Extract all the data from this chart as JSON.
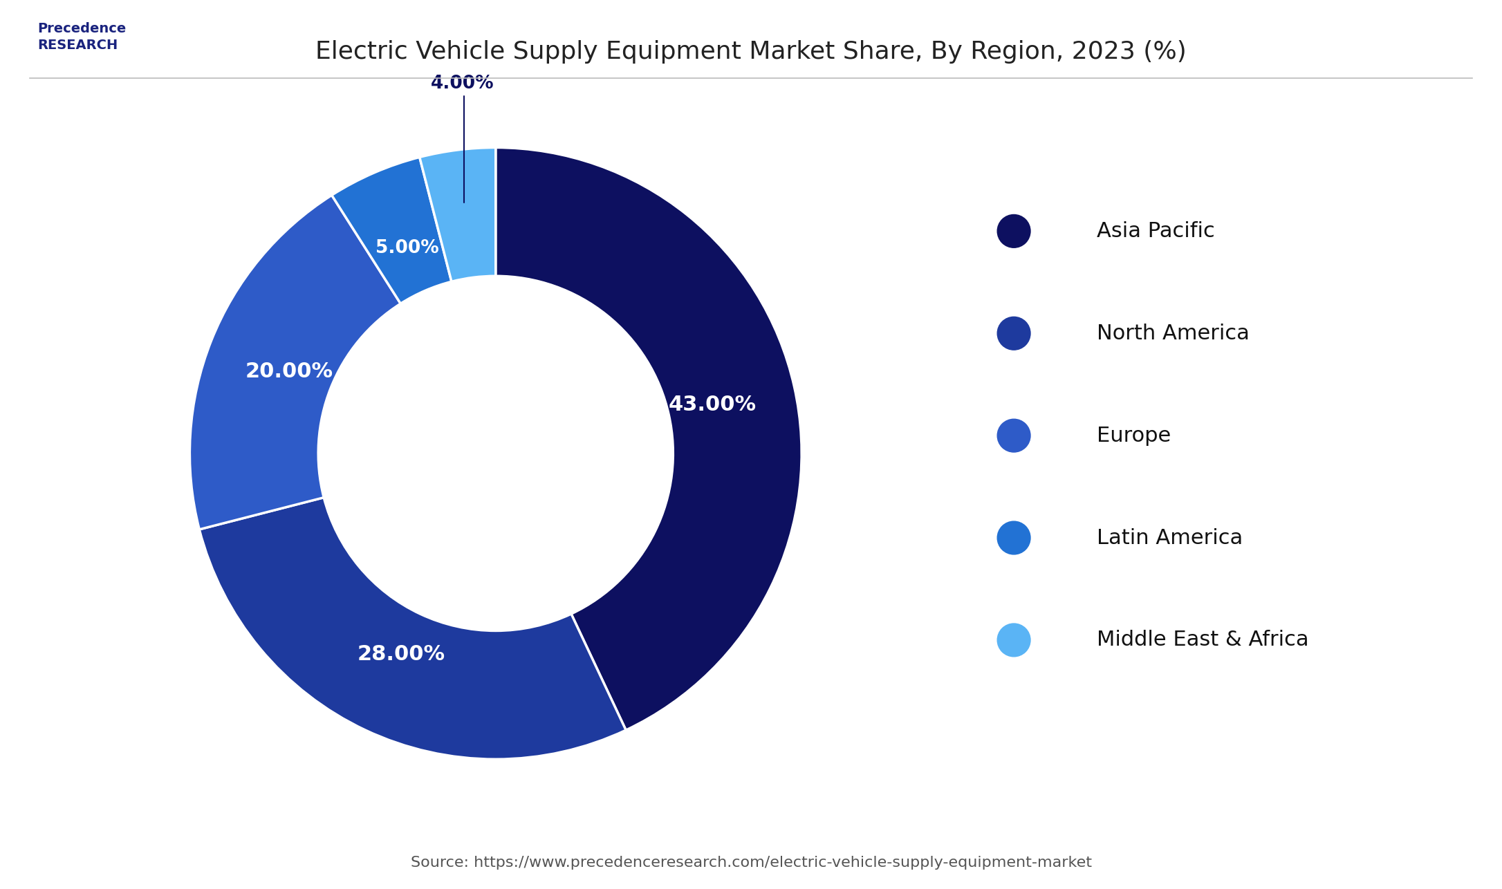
{
  "title": "Electric Vehicle Supply Equipment Market Share, By Region, 2023 (%)",
  "labels": [
    "Asia Pacific",
    "North America",
    "Europe",
    "Latin America",
    "Middle East & Africa"
  ],
  "values": [
    43.0,
    28.0,
    20.0,
    5.0,
    4.0
  ],
  "colors": [
    "#0d1060",
    "#1e3a9e",
    "#2e5bc8",
    "#2272d4",
    "#5ab4f5"
  ],
  "text_labels": [
    "43.00%",
    "28.00%",
    "20.00%",
    "5.00%",
    "4.00%"
  ],
  "source": "Source: https://www.precedenceresearch.com/electric-vehicle-supply-equipment-market",
  "background_color": "#ffffff",
  "legend_fontsize": 22,
  "title_fontsize": 26,
  "label_fontsize": 22,
  "source_fontsize": 16
}
